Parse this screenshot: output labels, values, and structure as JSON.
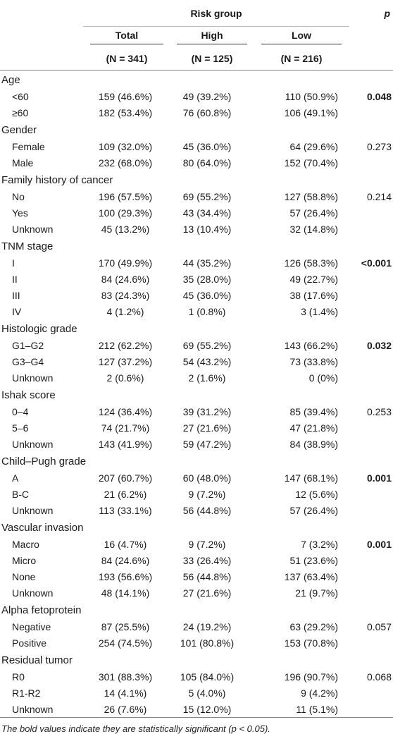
{
  "header": {
    "group_label": "Risk group",
    "p_label": "p",
    "columns": [
      {
        "label": "Total",
        "n": "(N = 341)"
      },
      {
        "label": "High",
        "n": "(N = 125)"
      },
      {
        "label": "Low",
        "n": "(N = 216)"
      }
    ]
  },
  "rows": [
    {
      "type": "cat",
      "label": "Age"
    },
    {
      "type": "item",
      "label": "<60",
      "total": "159 (46.6%)",
      "high": "49 (39.2%)",
      "low": "110 (50.9%)",
      "p": "0.048",
      "sig": true
    },
    {
      "type": "item",
      "label": "≥60",
      "total": "182 (53.4%)",
      "high": "76 (60.8%)",
      "low": "106 (49.1%)",
      "p": "",
      "sig": false
    },
    {
      "type": "cat",
      "label": "Gender"
    },
    {
      "type": "item",
      "label": "Female",
      "total": "109 (32.0%)",
      "high": "45 (36.0%)",
      "low": "64 (29.6%)",
      "p": "0.273",
      "sig": false
    },
    {
      "type": "item",
      "label": "Male",
      "total": "232 (68.0%)",
      "high": "80 (64.0%)",
      "low": "152 (70.4%)",
      "p": "",
      "sig": false
    },
    {
      "type": "cat",
      "label": "Family history of cancer"
    },
    {
      "type": "item",
      "label": "No",
      "total": "196 (57.5%)",
      "high": "69 (55.2%)",
      "low": "127 (58.8%)",
      "p": "0.214",
      "sig": false
    },
    {
      "type": "item",
      "label": "Yes",
      "total": "100 (29.3%)",
      "high": "43 (34.4%)",
      "low": "57 (26.4%)",
      "p": "",
      "sig": false
    },
    {
      "type": "item",
      "label": "Unknown",
      "total": "45 (13.2%)",
      "high": "13 (10.4%)",
      "low": "32 (14.8%)",
      "p": "",
      "sig": false
    },
    {
      "type": "cat",
      "label": "TNM stage"
    },
    {
      "type": "item",
      "label": "I",
      "total": "170 (49.9%)",
      "high": "44 (35.2%)",
      "low": "126 (58.3%)",
      "p": "<0.001",
      "sig": true
    },
    {
      "type": "item",
      "label": "II",
      "total": "84 (24.6%)",
      "high": "35 (28.0%)",
      "low": "49 (22.7%)",
      "p": "",
      "sig": false
    },
    {
      "type": "item",
      "label": "III",
      "total": "83 (24.3%)",
      "high": "45 (36.0%)",
      "low": "38 (17.6%)",
      "p": "",
      "sig": false
    },
    {
      "type": "item",
      "label": "IV",
      "total": "4 (1.2%)",
      "high": "1 (0.8%)",
      "low": "3 (1.4%)",
      "p": "",
      "sig": false
    },
    {
      "type": "cat",
      "label": "Histologic grade"
    },
    {
      "type": "item",
      "label": "G1–G2",
      "total": "212 (62.2%)",
      "high": "69 (55.2%)",
      "low": "143 (66.2%)",
      "p": "0.032",
      "sig": true
    },
    {
      "type": "item",
      "label": "G3–G4",
      "total": "127 (37.2%)",
      "high": "54 (43.2%)",
      "low": "73 (33.8%)",
      "p": "",
      "sig": false
    },
    {
      "type": "item",
      "label": "Unknown",
      "total": "2 (0.6%)",
      "high": "2 (1.6%)",
      "low": "0 (0%)",
      "p": "",
      "sig": false
    },
    {
      "type": "cat",
      "label": "Ishak score"
    },
    {
      "type": "item",
      "label": "0–4",
      "total": "124 (36.4%)",
      "high": "39 (31.2%)",
      "low": "85 (39.4%)",
      "p": "0.253",
      "sig": false
    },
    {
      "type": "item",
      "label": "5–6",
      "total": "74 (21.7%)",
      "high": "27 (21.6%)",
      "low": "47 (21.8%)",
      "p": "",
      "sig": false
    },
    {
      "type": "item",
      "label": "Unknown",
      "total": "143 (41.9%)",
      "high": "59 (47.2%)",
      "low": "84 (38.9%)",
      "p": "",
      "sig": false
    },
    {
      "type": "cat",
      "label": "Child–Pugh grade"
    },
    {
      "type": "item",
      "label": "A",
      "total": "207 (60.7%)",
      "high": "60 (48.0%)",
      "low": "147 (68.1%)",
      "p": "0.001",
      "sig": true
    },
    {
      "type": "item",
      "label": "B-C",
      "total": "21 (6.2%)",
      "high": "9 (7.2%)",
      "low": "12 (5.6%)",
      "p": "",
      "sig": false
    },
    {
      "type": "item",
      "label": "Unknown",
      "total": "113 (33.1%)",
      "high": "56 (44.8%)",
      "low": "57 (26.4%)",
      "p": "",
      "sig": false
    },
    {
      "type": "cat",
      "label": "Vascular invasion"
    },
    {
      "type": "item",
      "label": "Macro",
      "total": "16 (4.7%)",
      "high": "9 (7.2%)",
      "low": "7 (3.2%)",
      "p": "0.001",
      "sig": true
    },
    {
      "type": "item",
      "label": "Micro",
      "total": "84 (24.6%)",
      "high": "33 (26.4%)",
      "low": "51 (23.6%)",
      "p": "",
      "sig": false
    },
    {
      "type": "item",
      "label": "None",
      "total": "193 (56.6%)",
      "high": "56 (44.8%)",
      "low": "137 (63.4%)",
      "p": "",
      "sig": false
    },
    {
      "type": "item",
      "label": "Unknown",
      "total": "48 (14.1%)",
      "high": "27 (21.6%)",
      "low": "21 (9.7%)",
      "p": "",
      "sig": false
    },
    {
      "type": "cat",
      "label": "Alpha fetoprotein"
    },
    {
      "type": "item",
      "label": "Negative",
      "total": "87 (25.5%)",
      "high": "24 (19.2%)",
      "low": "63 (29.2%)",
      "p": "0.057",
      "sig": false
    },
    {
      "type": "item",
      "label": "Positive",
      "total": "254 (74.5%)",
      "high": "101 (80.8%)",
      "low": "153 (70.8%)",
      "p": "",
      "sig": false
    },
    {
      "type": "cat",
      "label": "Residual tumor"
    },
    {
      "type": "item",
      "label": "R0",
      "total": "301 (88.3%)",
      "high": "105 (84.0%)",
      "low": "196 (90.7%)",
      "p": "0.068",
      "sig": false
    },
    {
      "type": "item",
      "label": "R1-R2",
      "total": "14 (4.1%)",
      "high": "5 (4.0%)",
      "low": "9 (4.2%)",
      "p": "",
      "sig": false
    },
    {
      "type": "item",
      "label": "Unknown",
      "total": "26 (7.6%)",
      "high": "15 (12.0%)",
      "low": "11 (5.1%)",
      "p": "",
      "sig": false
    }
  ],
  "footnote": "The bold values indicate they are statistically significant (p < 0.05)."
}
